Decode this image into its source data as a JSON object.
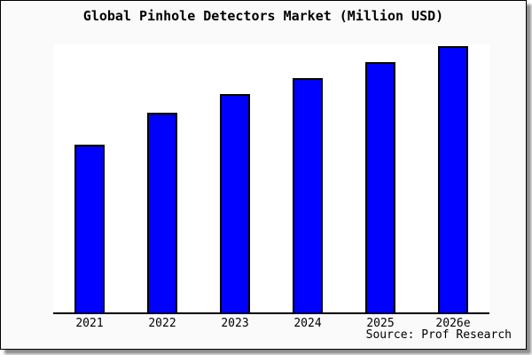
{
  "chart": {
    "title": "Global Pinhole Detectors Market (Million USD)",
    "source_note": "Source: Prof Research"
  },
  "chart_data": {
    "type": "bar",
    "title": "Global Pinhole Detectors Market (Million USD)",
    "categories": [
      "2021",
      "2022",
      "2023",
      "2024",
      "2025",
      "2026e"
    ],
    "values": [
      63,
      75,
      82,
      88,
      94,
      100
    ],
    "value_note": "y-axis unlabeled; values are relative estimates (2026e = 100) read from bar heights",
    "xlabel": "",
    "ylabel": "",
    "ylim": [
      0,
      100.5
    ],
    "grid": false,
    "legend": "none",
    "annotations": [
      "Source: Prof Research"
    ],
    "colors": {
      "bar_fill": "#0000ff",
      "bar_edge": "#000000",
      "figure_background": "#fafafa",
      "plot_background": "#ffffff",
      "text": "#000000"
    }
  }
}
